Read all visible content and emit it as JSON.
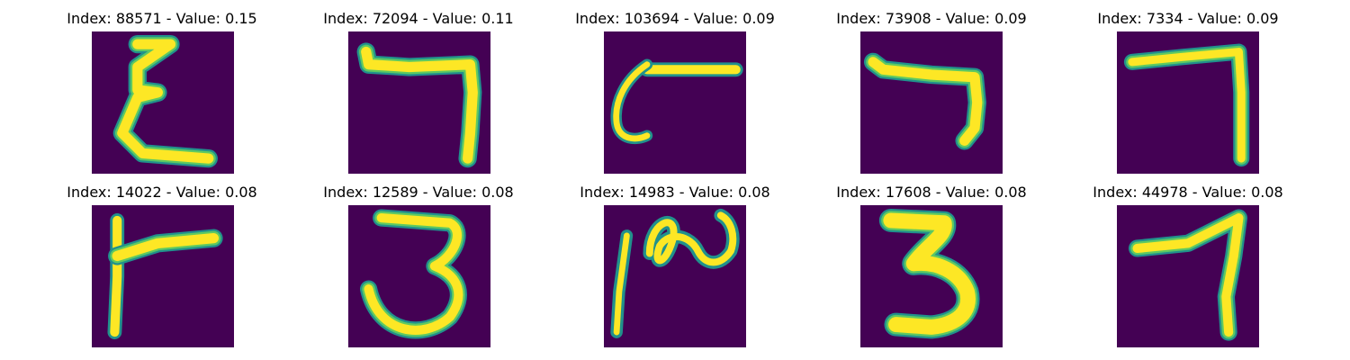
{
  "figure": {
    "panels": [
      {
        "title": "Index: 88571 - Value: 0.15",
        "glyph": "E-zigzag"
      },
      {
        "title": "Index: 72094 - Value: 0.11",
        "glyph": "seven-hook"
      },
      {
        "title": "Index: 103694 - Value: 0.09",
        "glyph": "curl-bar"
      },
      {
        "title": "Index: 73908 - Value: 0.09",
        "glyph": "seven-short"
      },
      {
        "title": "Index: 7334 - Value: 0.09",
        "glyph": "seven-tall"
      },
      {
        "title": "Index: 14022 - Value: 0.08",
        "glyph": "F-shape"
      },
      {
        "title": "Index: 12589 - Value: 0.08",
        "glyph": "three-thin"
      },
      {
        "title": "Index: 14983 - Value: 0.08",
        "glyph": "wave"
      },
      {
        "title": "Index: 17608 - Value: 0.08",
        "glyph": "three-bold"
      },
      {
        "title": "Index: 44978 - Value: 0.08",
        "glyph": "seven-slant"
      }
    ],
    "colors": {
      "background": "#440154",
      "stroke_outer": "#21918c",
      "stroke_mid": "#5ec962",
      "stroke_core": "#fde725"
    }
  }
}
